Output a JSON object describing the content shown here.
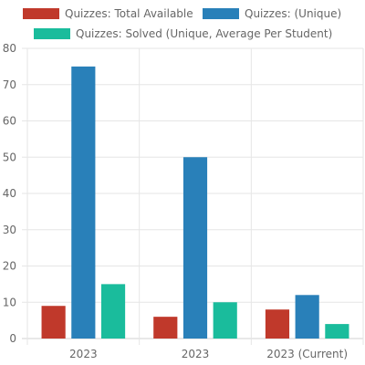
{
  "chart_data": {
    "type": "bar",
    "categories": [
      "2023",
      "2023",
      "2023 (Current)"
    ],
    "series": [
      {
        "name": "Quizzes: Total Available",
        "color": "#c0392b",
        "values": [
          9,
          6,
          8
        ]
      },
      {
        "name": "Quizzes: (Unique)",
        "color": "#2980b9",
        "values": [
          75,
          50,
          12
        ]
      },
      {
        "name": "Quizzes: Solved (Unique, Average Per Student)",
        "color": "#1abc9c",
        "values": [
          15,
          10,
          4
        ]
      }
    ],
    "ylim": [
      0,
      80
    ],
    "yticks": [
      0,
      10,
      20,
      30,
      40,
      50,
      60,
      70,
      80
    ],
    "grid": true,
    "legend": "top"
  }
}
